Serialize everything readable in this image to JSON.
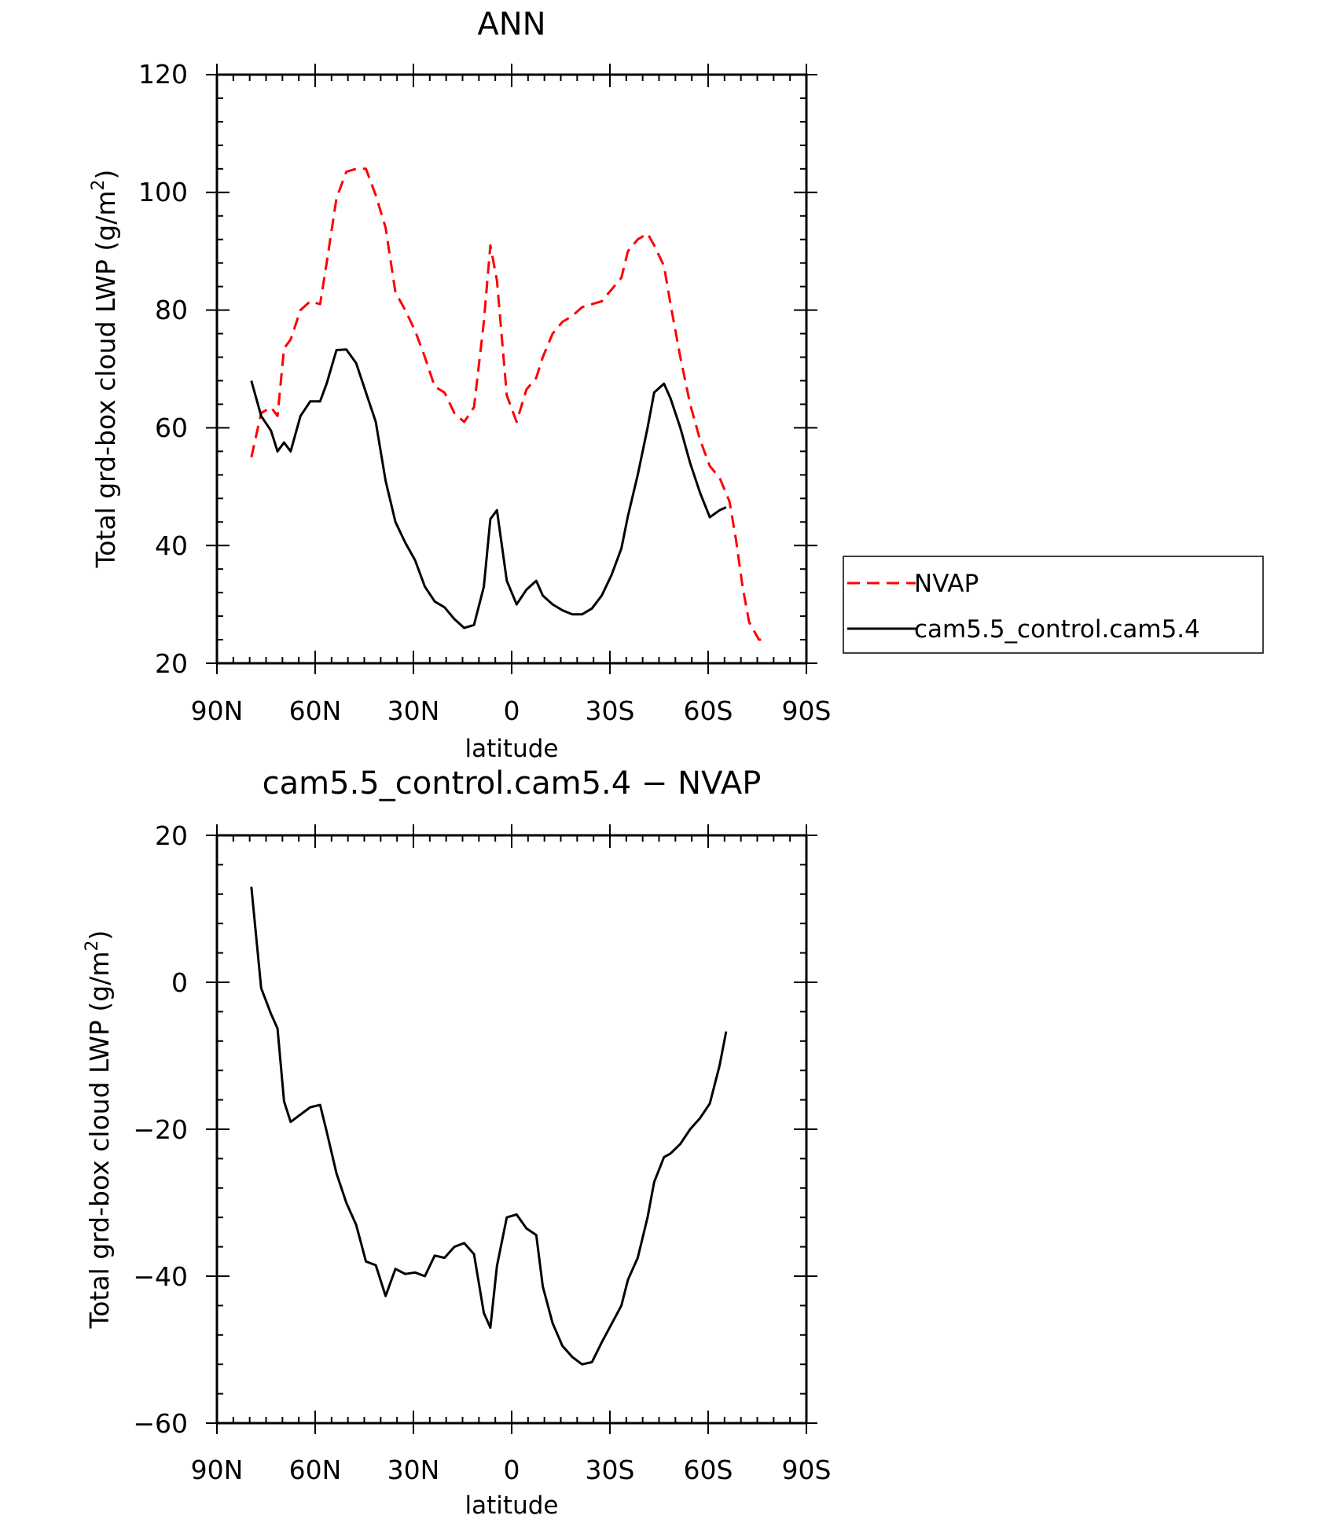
{
  "chart_data": [
    {
      "type": "line",
      "title": "ANN",
      "xlabel": "latitude",
      "ylabel": "Total grd-box cloud LWP (g/m",
      "ylabel_sup": "2",
      "ylabel_close": ")",
      "xlim": [
        90,
        -90
      ],
      "ylim": [
        20,
        120
      ],
      "xticks": [
        90,
        60,
        30,
        0,
        -30,
        -60,
        -90
      ],
      "xtick_labels": [
        "90N",
        "60N",
        "30N",
        "0",
        "30S",
        "60S",
        "90S"
      ],
      "yticks": [
        20,
        40,
        60,
        80,
        100,
        120
      ],
      "ytick_labels": [
        "20",
        "40",
        "60",
        "80",
        "100",
        "120"
      ],
      "legend": {
        "position": "right"
      },
      "series": [
        {
          "name": "NVAP",
          "color": "#ff0000",
          "dashed": true,
          "x": [
            79.5,
            76.5,
            73.5,
            71.5,
            69.5,
            67.5,
            64.5,
            61.5,
            58.5,
            56.5,
            53.5,
            50.5,
            47.5,
            44.5,
            41.5,
            38.5,
            35.5,
            32.5,
            29.5,
            26.5,
            23.5,
            20.5,
            17.5,
            14.5,
            11.5,
            8.5,
            6.5,
            4.5,
            1.5,
            -1.5,
            -4.5,
            -7.5,
            -9.5,
            -12.5,
            -15.5,
            -18.5,
            -21.5,
            -24.5,
            -27.5,
            -30.5,
            -33.5,
            -35.5,
            -38.5,
            -41.5,
            -43.5,
            -46.5,
            -48.5,
            -51.5,
            -54.5,
            -57.5,
            -60.5,
            -63.5,
            -66.5,
            -68.5,
            -70.5,
            -72.5,
            -75.5,
            -77.5
          ],
          "y": [
            55,
            62.5,
            63.5,
            62,
            73.5,
            75,
            80,
            81.5,
            81,
            88,
            99,
            103.5,
            104,
            104,
            99.5,
            94,
            83,
            80,
            76.5,
            72,
            67,
            66,
            62.5,
            61,
            63.5,
            78,
            91,
            85,
            65.5,
            61,
            66.5,
            68.5,
            72,
            76,
            78,
            79,
            80.5,
            81,
            81.5,
            83.5,
            85.5,
            90,
            92,
            93,
            91,
            87.5,
            81,
            72,
            64,
            58,
            53.5,
            51.5,
            47.5,
            41,
            33,
            27,
            24,
            24
          ]
        },
        {
          "name": "cam5.5_control.cam5.4",
          "color": "#000000",
          "dashed": false,
          "x": [
            79.5,
            76.5,
            73.5,
            71.5,
            69.5,
            67.5,
            64.5,
            61.5,
            58.5,
            56.5,
            53.5,
            50.5,
            47.5,
            44.5,
            41.5,
            38.5,
            35.5,
            32.5,
            29.5,
            26.5,
            23.5,
            20.5,
            17.5,
            14.5,
            11.5,
            8.5,
            6.5,
            4.5,
            1.5,
            -1.5,
            -4.5,
            -7.5,
            -9.5,
            -12.5,
            -15.5,
            -18.5,
            -21.5,
            -24.5,
            -27.5,
            -30.5,
            -33.5,
            -35.5,
            -38.5,
            -41.5,
            -43.5,
            -46.5,
            -48.5,
            -51.5,
            -54.5,
            -57.5,
            -60.5,
            -63.5,
            -65.5
          ],
          "y": [
            68,
            62,
            59.5,
            56,
            57.5,
            56,
            62,
            64.5,
            64.5,
            67.5,
            73.2,
            73.3,
            71,
            66,
            61,
            51,
            44,
            40.5,
            37.5,
            33,
            30.5,
            29.5,
            27.5,
            26,
            26.5,
            33,
            44.5,
            46,
            34,
            30,
            32.5,
            34,
            31.5,
            30,
            29,
            28.3,
            28.3,
            29.3,
            31.5,
            35,
            39.5,
            45,
            52,
            60,
            66,
            67.5,
            65,
            60,
            54,
            49,
            44.8,
            46,
            46.5
          ]
        }
      ]
    },
    {
      "type": "line",
      "title": "cam5.5_control.cam5.4 − NVAP",
      "xlabel": "latitude",
      "ylabel": "Total grd-box cloud LWP (g/m",
      "ylabel_sup": "2",
      "ylabel_close": ")",
      "xlim": [
        90,
        -90
      ],
      "ylim": [
        -60,
        20
      ],
      "xticks": [
        90,
        60,
        30,
        0,
        -30,
        -60,
        -90
      ],
      "xtick_labels": [
        "90N",
        "60N",
        "30N",
        "0",
        "30S",
        "60S",
        "90S"
      ],
      "yticks": [
        -60,
        -40,
        -20,
        0,
        20
      ],
      "ytick_labels": [
        "−60",
        "−40",
        "−20",
        "0",
        "20"
      ],
      "series": [
        {
          "color": "#000000",
          "dashed": false,
          "x": [
            79.5,
            76.5,
            73.5,
            71.5,
            69.5,
            67.5,
            64.5,
            61.5,
            58.5,
            56.5,
            53.5,
            50.5,
            47.5,
            44.5,
            41.5,
            38.5,
            35.5,
            32.5,
            29.5,
            26.5,
            23.5,
            20.5,
            17.5,
            14.5,
            11.5,
            8.5,
            6.5,
            4.5,
            1.5,
            -1.5,
            -4.5,
            -7.5,
            -9.5,
            -12.5,
            -15.5,
            -18.5,
            -21.5,
            -24.5,
            -27.5,
            -30.5,
            -33.5,
            -35.5,
            -38.5,
            -41.5,
            -43.5,
            -46.5,
            -48.5,
            -51.5,
            -54.5,
            -57.5,
            -60.5,
            -63.5,
            -65.5
          ],
          "y": [
            13,
            -0.8,
            -4.3,
            -6.3,
            -16.2,
            -19,
            -18,
            -17,
            -16.7,
            -20.3,
            -26,
            -30,
            -33,
            -38,
            -38.5,
            -42.7,
            -39,
            -39.7,
            -39.5,
            -40,
            -37.2,
            -37.5,
            -36,
            -35.5,
            -37,
            -45,
            -47,
            -38.6,
            -32,
            -31.6,
            -33.5,
            -34.4,
            -41.4,
            -46.4,
            -49.5,
            -51,
            -52,
            -51.7,
            -49,
            -46.5,
            -44,
            -40.5,
            -37.5,
            -32,
            -27.2,
            -23.8,
            -23.3,
            -22,
            -20,
            -18.5,
            -16.5,
            -11.3,
            -6.7
          ]
        }
      ]
    }
  ]
}
